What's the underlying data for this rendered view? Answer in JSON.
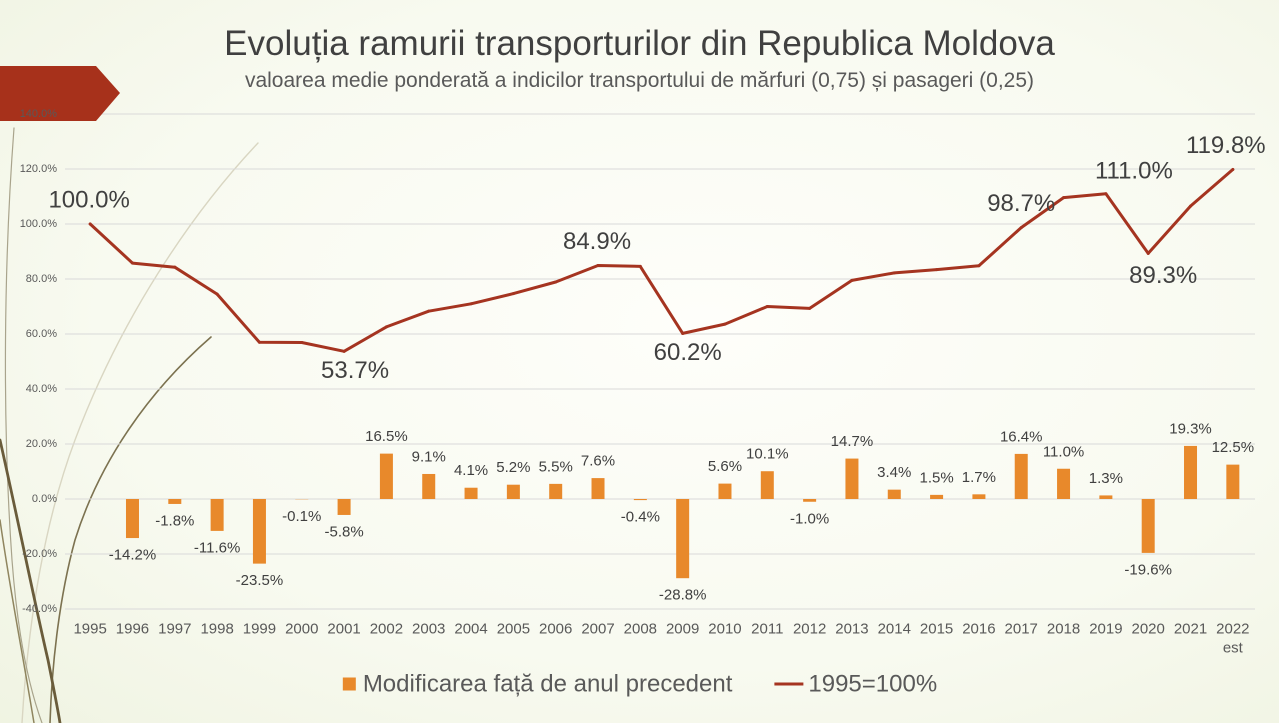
{
  "colors": {
    "bar": "#E8892B",
    "line": "#A53420",
    "arrow": "#A7311B"
  },
  "chart_data": {
    "type": "bar",
    "title": "Evoluția ramurii transporturilor din Republica Moldova",
    "subtitle": "valoarea medie ponderată a indicilor transportului de mărfuri (0,75) și pasageri (0,25)",
    "categories": [
      "1995",
      "1996",
      "1997",
      "1998",
      "1999",
      "2000",
      "2001",
      "2002",
      "2003",
      "2004",
      "2005",
      "2006",
      "2007",
      "2008",
      "2009",
      "2010",
      "2011",
      "2012",
      "2013",
      "2014",
      "2015",
      "2016",
      "2017",
      "2018",
      "2019",
      "2020",
      "2021",
      "2022"
    ],
    "category_notes": {
      "2022": "est"
    },
    "series": [
      {
        "name": "Modificarea față de anul precedent",
        "type": "bar",
        "values": [
          null,
          -14.2,
          -1.8,
          -11.6,
          -23.5,
          -0.1,
          -5.8,
          16.5,
          9.1,
          4.1,
          5.2,
          5.5,
          7.6,
          -0.4,
          -28.8,
          5.6,
          10.1,
          -1.0,
          14.7,
          3.4,
          1.5,
          1.7,
          16.4,
          11.0,
          1.3,
          -19.6,
          19.3,
          12.5
        ],
        "labels": [
          null,
          "-14.2%",
          "-1.8%",
          "-11.6%",
          "-23.5%",
          "-0.1%",
          "-5.8%",
          "16.5%",
          "9.1%",
          "4.1%",
          "5.2%",
          "5.5%",
          "7.6%",
          "-0.4%",
          "-28.8%",
          "5.6%",
          "10.1%",
          "-1.0%",
          "14.7%",
          "3.4%",
          "1.5%",
          "1.7%",
          "16.4%",
          "11.0%",
          "1.3%",
          "-19.6%",
          "19.3%",
          "12.5%"
        ]
      },
      {
        "name": "1995=100%",
        "type": "line",
        "values": [
          100.0,
          85.8,
          84.3,
          74.5,
          57.0,
          56.9,
          53.7,
          62.6,
          68.3,
          71.0,
          74.7,
          78.9,
          84.9,
          84.6,
          60.2,
          63.6,
          70.0,
          69.3,
          79.5,
          82.2,
          83.4,
          84.8,
          98.7,
          109.6,
          111.0,
          89.3,
          106.5,
          119.8
        ],
        "labels": [
          {
            "category": "1995",
            "label": "100.0%"
          },
          {
            "category": "2001",
            "label": "53.7%"
          },
          {
            "category": "2007",
            "label": "84.9%"
          },
          {
            "category": "2009",
            "label": "60.2%"
          },
          {
            "category": "2017",
            "label": "98.7%"
          },
          {
            "category": "2019",
            "label": "111.0%"
          },
          {
            "category": "2020",
            "label": "89.3%"
          },
          {
            "category": "2022",
            "label": "119.8%"
          }
        ]
      }
    ],
    "ylim": [
      -40,
      140
    ],
    "y_ticks": [
      "140.0%",
      "120.0%",
      "100.0%",
      "80.0%",
      "60.0%",
      "40.0%",
      "20.0%",
      "0.0%",
      "-20.0%",
      "-40.0%"
    ],
    "grid": true,
    "legend": "bottom"
  }
}
